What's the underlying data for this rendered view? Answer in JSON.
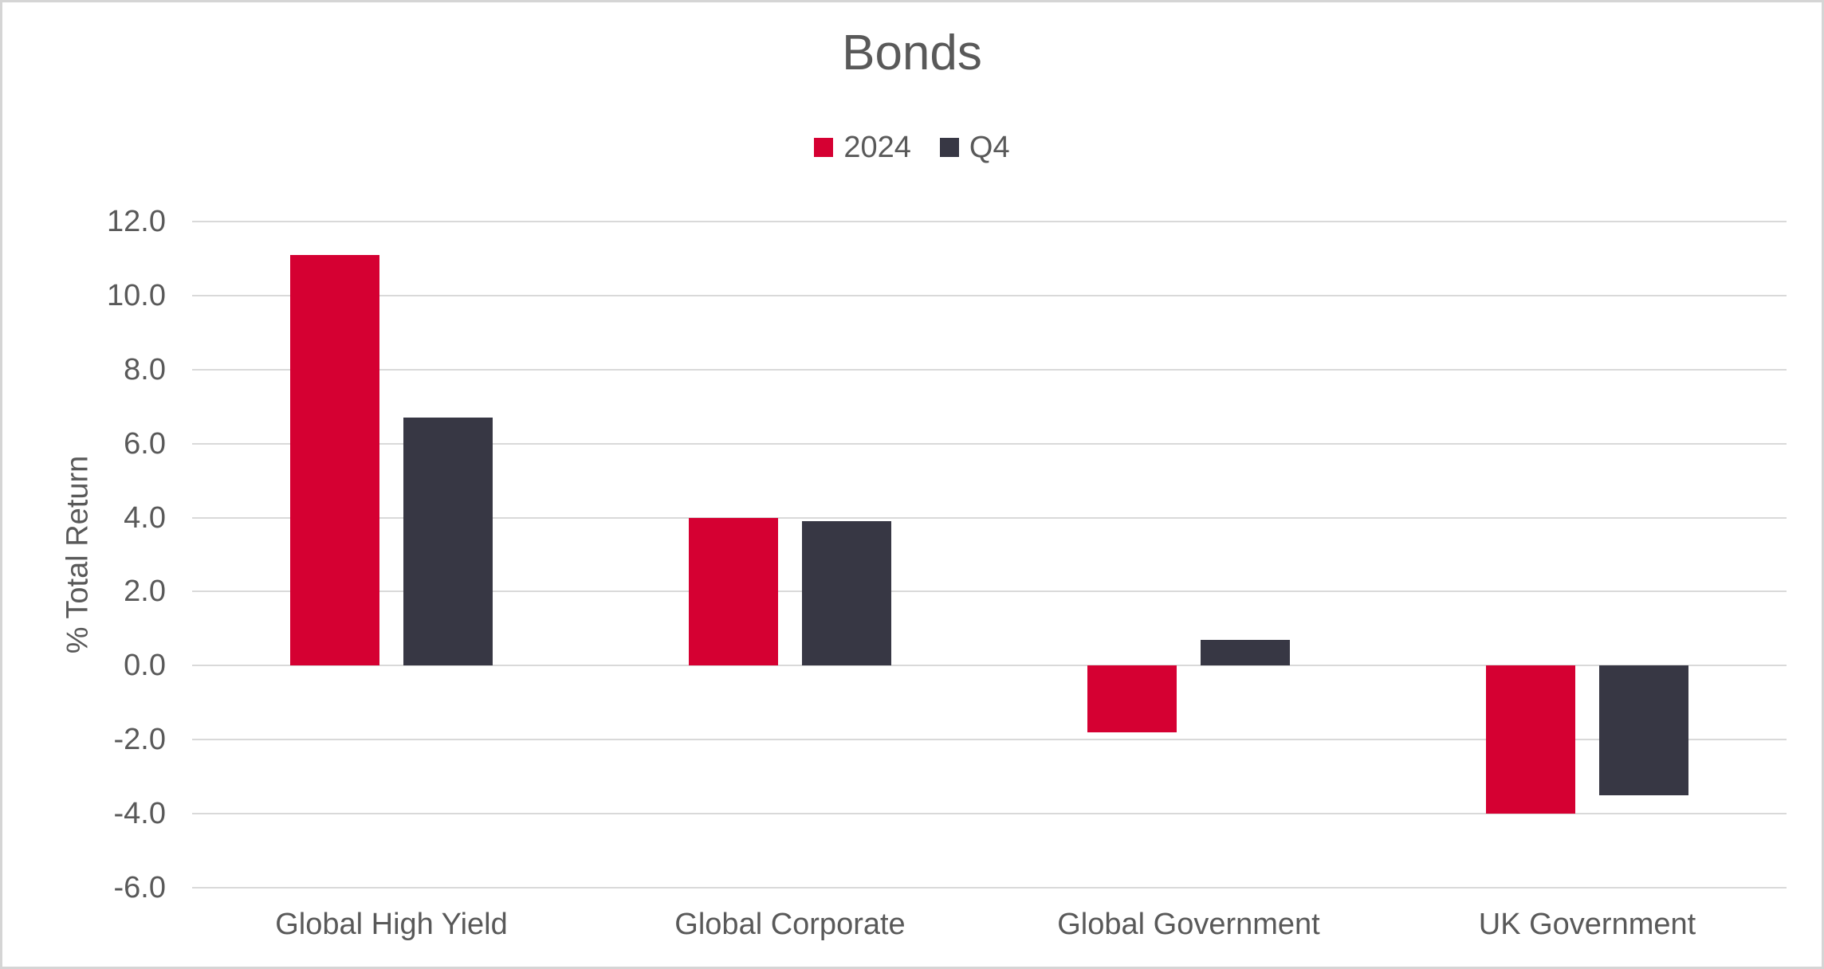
{
  "chart": {
    "title": "Bonds",
    "ylabel": "% Total Return",
    "colors": {
      "series_2024": "#D50032",
      "series_q4": "#373744",
      "gridline": "#D9D9D9",
      "text": "#595959",
      "border": "#D5D5D5",
      "background": "#FFFFFF"
    }
  },
  "chart_data": {
    "type": "bar",
    "title": "Bonds",
    "categories": [
      "Global High Yield",
      "Global Corporate",
      "Global Government",
      "UK Government"
    ],
    "series": [
      {
        "name": "2024",
        "color": "#D50032",
        "values": [
          11.1,
          4.0,
          -1.8,
          -4.0
        ]
      },
      {
        "name": "Q4",
        "color": "#373744",
        "values": [
          6.7,
          3.9,
          0.7,
          -3.5
        ]
      }
    ],
    "xlabel": "",
    "ylabel": "% Total Return",
    "ylim": [
      -6.0,
      12.0
    ],
    "ytick_step": 2.0,
    "ytick_labels": [
      "12.0",
      "10.0",
      "8.0",
      "6.0",
      "4.0",
      "2.0",
      "0.0",
      "-2.0",
      "-4.0",
      "-6.0"
    ],
    "grid": true,
    "legend_position": "top-center"
  }
}
